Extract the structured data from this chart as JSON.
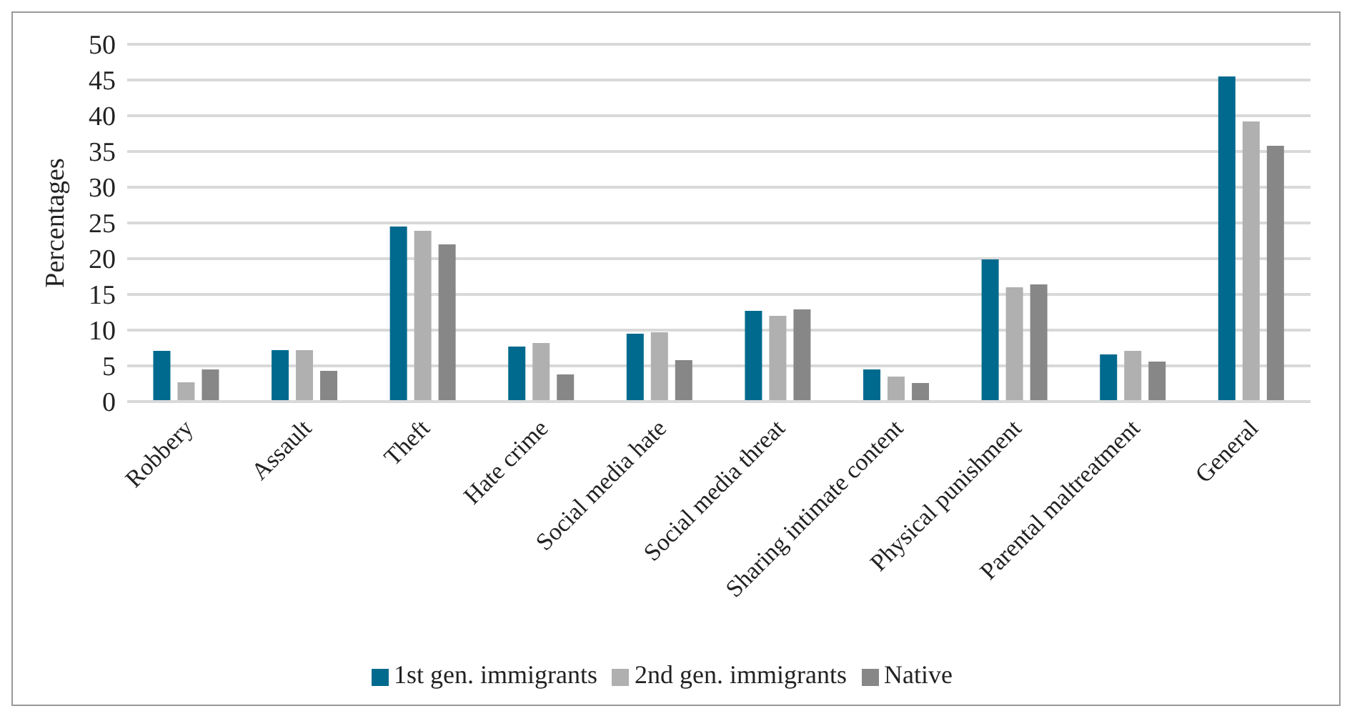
{
  "chart_data": {
    "type": "bar",
    "ylabel": "Percentages",
    "categories": [
      "Robbery",
      "Assault",
      "Theft",
      "Hate crime",
      "Social media hate",
      "Social media threat",
      "Sharing intimate content",
      "Physical punishment",
      "Parental maltreatment",
      "General"
    ],
    "series": [
      {
        "name": "1st gen. immigrants",
        "color": "#006a8e",
        "values": [
          7.1,
          7.2,
          24.5,
          7.7,
          9.5,
          12.7,
          4.5,
          19.9,
          6.6,
          45.5
        ]
      },
      {
        "name": "2nd gen. immigrants",
        "color": "#b0b0b0",
        "values": [
          2.7,
          7.2,
          23.9,
          8.2,
          9.7,
          12.0,
          3.5,
          16.0,
          7.1,
          39.2
        ]
      },
      {
        "name": "Native",
        "color": "#878787",
        "values": [
          4.5,
          4.3,
          22.0,
          3.8,
          5.8,
          12.9,
          2.6,
          16.4,
          5.6,
          35.8
        ]
      }
    ],
    "ylim": [
      0,
      50
    ],
    "yticks": [
      0,
      5,
      10,
      15,
      20,
      25,
      30,
      35,
      40,
      45,
      50
    ],
    "grid": "y",
    "legend": "bottom"
  }
}
